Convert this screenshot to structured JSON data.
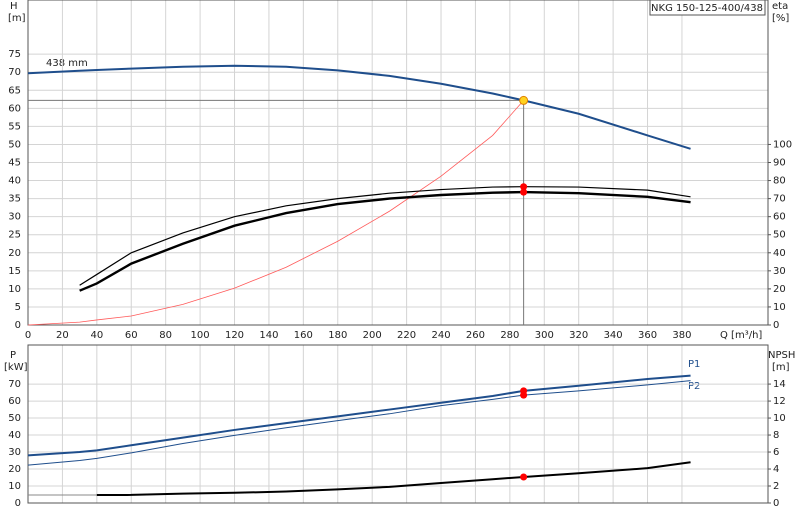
{
  "chart_data": [
    {
      "type": "line",
      "title": "NKG 150-125-400/438",
      "y_label": "H",
      "y_unit": "[m]",
      "y2_label": "eta",
      "y2_unit": "[%]",
      "x_label": "Q [m³/h]",
      "curve_label": "438 mm",
      "x": [
        0,
        30,
        40,
        60,
        90,
        120,
        150,
        180,
        210,
        240,
        270,
        288,
        320,
        360,
        385
      ],
      "xlim": [
        0,
        430
      ],
      "xticks": [
        0,
        20,
        40,
        60,
        80,
        100,
        120,
        140,
        160,
        180,
        200,
        220,
        240,
        260,
        280,
        300,
        320,
        340,
        360,
        380
      ],
      "ylim": [
        0,
        90
      ],
      "yticks": [
        0,
        5,
        10,
        15,
        20,
        25,
        30,
        35,
        40,
        45,
        50,
        55,
        60,
        65,
        70,
        75
      ],
      "y2lim": [
        0,
        180
      ],
      "y2ticks": [
        0,
        10,
        20,
        30,
        40,
        50,
        60,
        70,
        80,
        90,
        100
      ],
      "grid": true,
      "duty_point": {
        "x": 288,
        "y": 62.2
      },
      "series": [
        {
          "color": "#1f4e8c",
          "width": 2,
          "values": [
            69.7,
            70.4,
            70.6,
            71,
            71.5,
            71.8,
            71.5,
            70.5,
            69,
            66.8,
            64.1,
            62.2,
            58.5,
            52.5,
            48.8
          ]
        },
        {
          "color": "#ff5a5a",
          "width": 0.8,
          "values": [
            0,
            0.8,
            1.4,
            2.5,
            5.7,
            10.2,
            16,
            23.2,
            31.5,
            41.2,
            52.5,
            62.2,
            null,
            null,
            null
          ]
        },
        {
          "color": "#000000",
          "width": 1.2,
          "axis": "y2",
          "duty_marker": true,
          "values": [
            null,
            22,
            28,
            40,
            51,
            60,
            66,
            70,
            73,
            75,
            76.4,
            76.6,
            76.4,
            74.7,
            71
          ]
        },
        {
          "color": "#000000",
          "width": 2.4,
          "axis": "y2",
          "duty_marker": true,
          "values": [
            null,
            19,
            23,
            34,
            45,
            55,
            62,
            67,
            70,
            72,
            73.3,
            73.6,
            73,
            71,
            68
          ]
        }
      ]
    },
    {
      "type": "line",
      "y_label": "P",
      "y_unit": "[kW]",
      "y2_label": "NPSH",
      "y2_unit": "[m]",
      "x": [
        0,
        30,
        40,
        60,
        90,
        120,
        150,
        180,
        210,
        240,
        270,
        288,
        320,
        360,
        385
      ],
      "ylim": [
        0,
        93
      ],
      "yticks": [
        0,
        10,
        20,
        30,
        40,
        50,
        60,
        70
      ],
      "y2lim": [
        0,
        18.6
      ],
      "y2ticks": [
        0,
        2,
        4,
        6,
        8,
        10,
        12,
        14
      ],
      "grid": true,
      "series": [
        {
          "name": "P1",
          "color": "#1f4e8c",
          "width": 2,
          "duty_marker": true,
          "values": [
            28,
            30,
            31,
            34,
            38.5,
            43,
            47,
            51,
            55,
            59,
            63,
            66,
            69,
            73,
            75
          ]
        },
        {
          "name": "P2",
          "color": "#1f4e8c",
          "width": 1,
          "duty_marker": true,
          "values": [
            22.3,
            25,
            26.3,
            29.5,
            35,
            39.8,
            44.3,
            48.5,
            52.5,
            57.3,
            61,
            63.5,
            66,
            69.5,
            72
          ]
        },
        {
          "color": "#888888",
          "width": 1,
          "axis": "y2",
          "values": [
            0.94,
            0.94,
            0.94,
            null,
            null,
            null,
            null,
            null,
            null,
            null,
            null,
            null,
            null,
            null,
            null
          ]
        },
        {
          "color": "#000000",
          "width": 2,
          "axis": "y2",
          "duty_marker": true,
          "values": [
            null,
            null,
            0.94,
            0.95,
            1.1,
            1.2,
            1.35,
            1.6,
            1.9,
            2.35,
            2.8,
            3.06,
            3.5,
            4.1,
            4.8
          ]
        }
      ]
    }
  ]
}
